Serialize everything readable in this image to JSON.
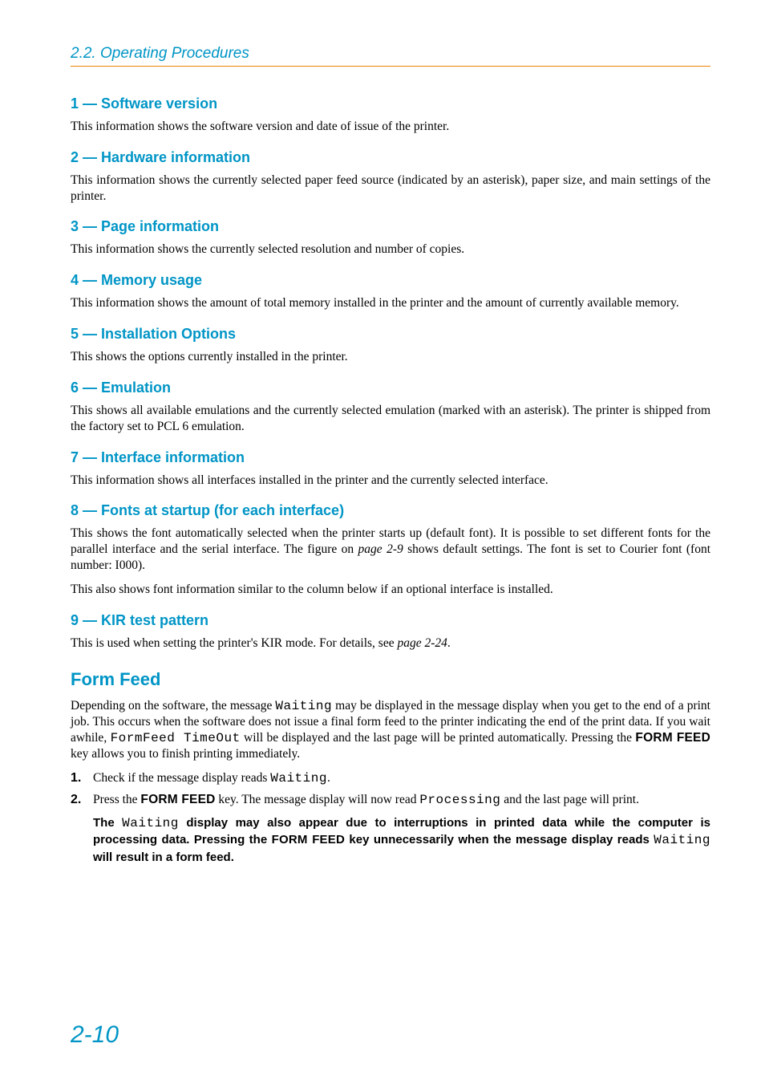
{
  "header": {
    "title": "2.2. Operating Procedures"
  },
  "sections": [
    {
      "heading": "1 — Software version",
      "paras": [
        "This information shows the software version and date of issue of the printer."
      ]
    },
    {
      "heading": "2 — Hardware information",
      "paras": [
        "This information shows the currently selected paper feed source (indicated by an asterisk), paper size, and main settings of the printer."
      ]
    },
    {
      "heading": "3 — Page information",
      "paras": [
        "This information shows the currently selected resolution and number of copies."
      ]
    },
    {
      "heading": "4 — Memory usage",
      "paras": [
        "This information shows the amount of total memory installed in the printer and the amount of currently available memory."
      ]
    },
    {
      "heading": "5 — Installation Options",
      "paras": [
        "This shows the options currently installed in the printer."
      ]
    },
    {
      "heading": "6 — Emulation",
      "paras": [
        "This shows all available emulations and the currently selected emulation (marked with an asterisk). The printer is shipped from the factory set to PCL 6 emulation."
      ]
    },
    {
      "heading": "7 — Interface information",
      "paras": [
        "This information shows all interfaces installed in the printer and the currently selected interface."
      ]
    },
    {
      "heading": "8 — Fonts at startup (for each interface)",
      "paras": [
        "This shows the font automatically selected when the printer starts up (default font). It is possible to set different fonts for the parallel interface and the serial interface. The figure on <span class=\"page-ref\">page 2-9</span> shows default settings. The font is set to Courier font (font number: I000).",
        "This also shows font information similar to the column below if an optional interface is installed."
      ]
    },
    {
      "heading": "9 — KIR test pattern",
      "paras": [
        "This is used when setting the printer's KIR mode. For details, see <span class=\"page-ref\">page 2-24</span>."
      ]
    }
  ],
  "formfeed": {
    "heading": "Form Feed",
    "intro": "Depending on the software, the message <span class=\"mono-lcd\">Waiting</span> may be displayed in the message display when you get to the end of a print job.  This occurs when the software does not issue a final form feed to the printer indicating the end of the print data.  If you wait awhile, <span class=\"mono-lcd\">FormFeed TimeOut</span> will be displayed and the last page will be printed automatically.  Pressing the <span class=\"sans-bold\">FORM FEED</span> key allows you to finish printing immediately.",
    "steps": [
      "Check if the message display reads <span class=\"mono-lcd\">Waiting</span>.",
      "Press the <span class=\"sans-bold\">FORM FEED</span> key.  The message display will now read <span class=\"mono-lcd\">Processing</span> and the last page will print."
    ],
    "note": "The <span class=\"mono-lcd\">Waiting</span> display may also appear due to interruptions in printed data while the computer is processing data.  Pressing the <span class=\"sans-bold\">FORM FEED</span> key unnecessarily when the message display reads <span class=\"mono-lcd\">Waiting</span> will result in a form feed."
  },
  "page_number": "2-10",
  "colors": {
    "accent_blue": "#0095c6",
    "rule_orange": "#ef8200",
    "text": "#000000",
    "background": "#ffffff"
  }
}
